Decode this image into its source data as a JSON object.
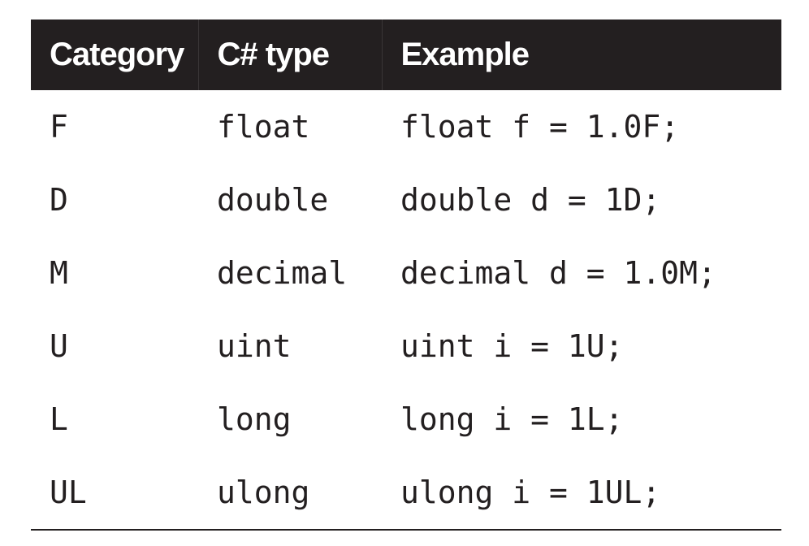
{
  "table": {
    "headers": [
      "Category",
      "C# type",
      "Example"
    ],
    "rows": [
      [
        "F",
        "float",
        "float f = 1.0F;"
      ],
      [
        "D",
        "double",
        "double d = 1D;"
      ],
      [
        "M",
        "decimal",
        "decimal d = 1.0M;"
      ],
      [
        "U",
        "uint",
        "uint i = 1U;"
      ],
      [
        "L",
        "long",
        "long i = 1L;"
      ],
      [
        "UL",
        "ulong",
        "ulong i = 1UL;"
      ]
    ]
  },
  "colors": {
    "header_background": "#231f20",
    "header_text": "#ffffff",
    "body_text": "#231f20"
  }
}
